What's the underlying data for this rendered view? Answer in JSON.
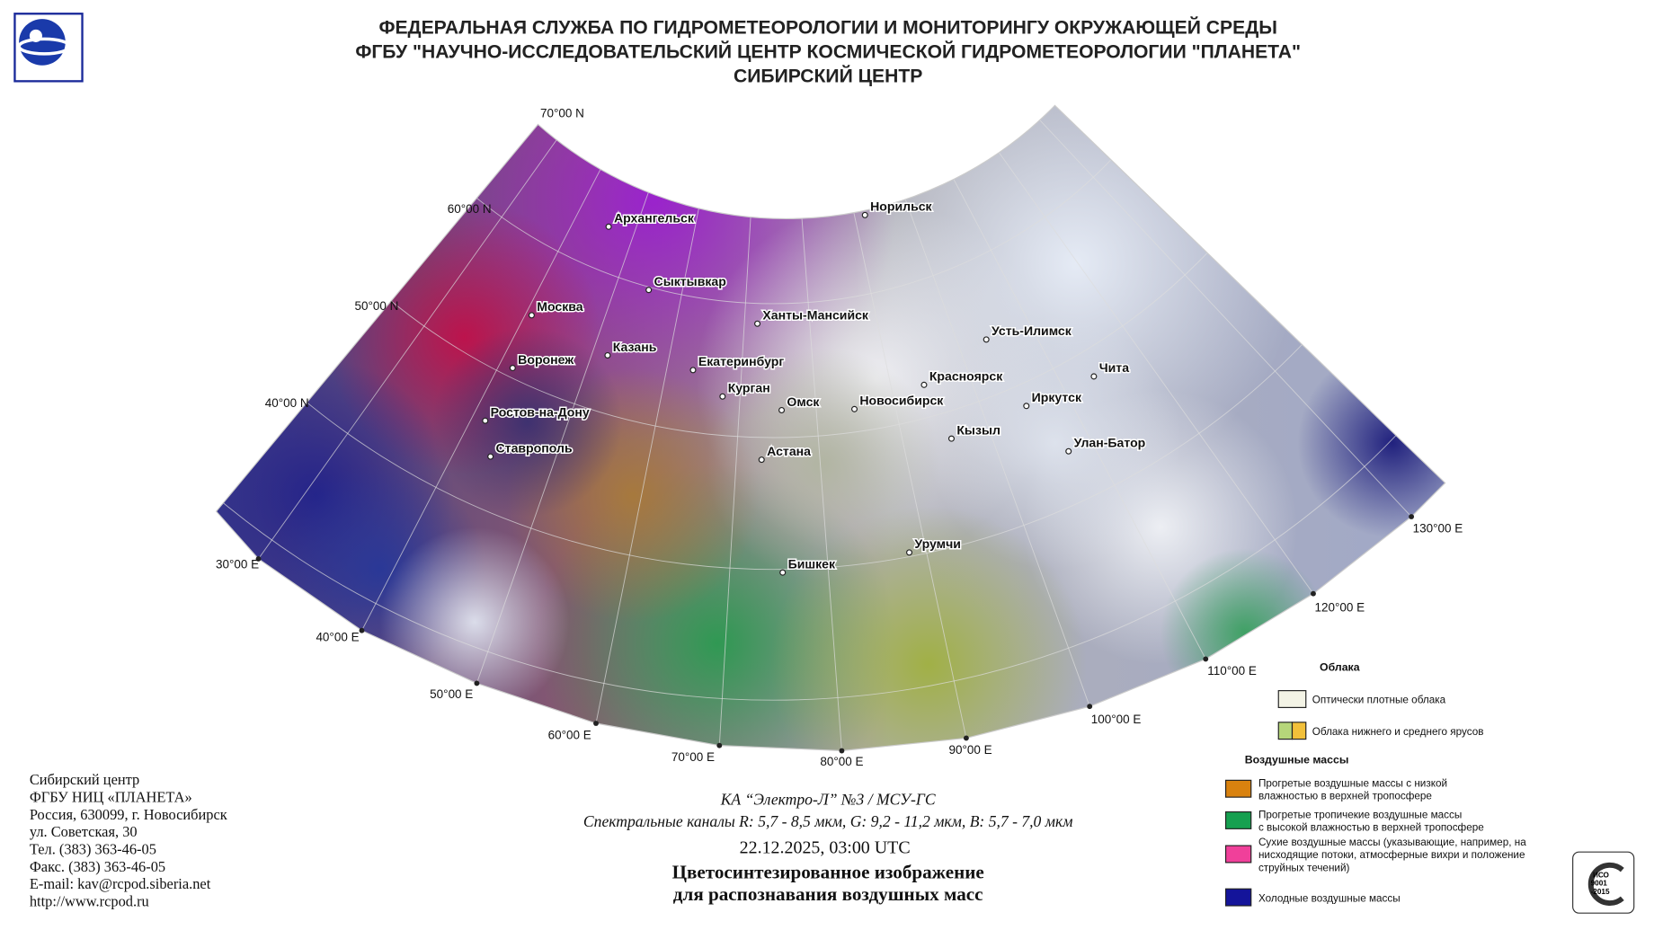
{
  "header": {
    "lines": [
      "ФЕДЕРАЛЬНАЯ СЛУЖБА ПО ГИДРОМЕТЕОРОЛОГИИ И МОНИТОРИНГУ ОКРУЖАЮЩЕЙ СРЕДЫ",
      "ФГБУ \"НАУЧНО-ИССЛЕДОВАТЕЛЬСКИЙ ЦЕНТР КОСМИЧЕСКОЙ ГИДРОМЕТЕОРОЛОГИИ \"ПЛАНЕТА\"",
      "СИБИРСКИЙ ЦЕНТР"
    ]
  },
  "map": {
    "parallels": [
      "70°00 N",
      "60°00 N",
      "50°00 N",
      "40°00 N"
    ],
    "meridians": [
      "30°00 E",
      "40°00 E",
      "50°00 E",
      "60°00 E",
      "70°00 E",
      "80°00 E",
      "90°00 E",
      "100°00 E",
      "110°00 E",
      "120°00 E",
      "130°00 E"
    ],
    "cities": [
      "Архангельск",
      "Сыктывкар",
      "Москва",
      "Казань",
      "Воронеж",
      "Ханты-Мансийск",
      "Екатеринбург",
      "Курган",
      "Омск",
      "Новосибирск",
      "Норильск",
      "Красноярск",
      "Усть-Илимск",
      "Чита",
      "Иркутск",
      "Кызыл",
      "Улан-Батор",
      "Ростов-на-Дону",
      "Ставрополь",
      "Астана",
      "Бишкек",
      "Урумчи"
    ]
  },
  "legend": {
    "clouds_title": "Облака",
    "clouds": [
      "Оптически плотные облака",
      "Облака нижнего и среднего ярусов"
    ],
    "airmass_title": "Воздушные массы",
    "airmass": [
      [
        "Прогретые воздушные массы с низкой",
        "влажностью в верхней тропосфере"
      ],
      [
        "Прогретые тропичекие воздушные массы",
        "с высокой влажностью в верхней тропосфере"
      ],
      [
        "Сухие воздушные массы (указывающие, например, на",
        "нисходящие потоки, атмосферные вихри и положение",
        "струйных течений)"
      ],
      [
        "Холодные воздушные массы"
      ]
    ]
  },
  "caption": {
    "satellite": "КА “Электро-Л” №3 / МСУ-ГС",
    "channels": "Спектральные каналы R: 5,7 - 8,5 мкм, G: 9,2 - 11,2 мкм, B: 5,7 - 7,0 мкм",
    "datetime": "22.12.2025, 03:00 UTC",
    "title_lines": [
      "Цветосинтезированное изображение",
      "для распознавания воздушных масс"
    ]
  },
  "address": [
    "Сибирский центр",
    "ФГБУ НИЦ «ПЛАНЕТА»",
    "Россия, 630099, г. Новосибирск",
    "ул. Советская, 30",
    "Тел. (383) 363-46-05",
    "Факс. (383) 363-46-05",
    "E-mail: kav@rcpod.siberia.net",
    "http://www.rcpod.ru"
  ],
  "iso": [
    "ИСО",
    "9001",
    "-2015"
  ]
}
